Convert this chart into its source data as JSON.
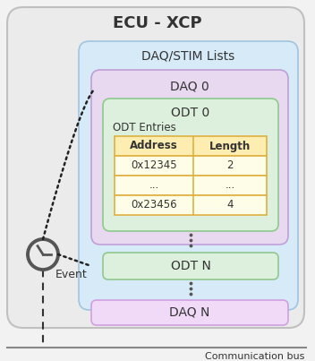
{
  "title": "ECU - XCP",
  "daq_stim_label": "DAQ/STIM Lists",
  "daq0_label": "DAQ 0",
  "odt0_label": "ODT 0",
  "odt_entries_label": "ODT Entries",
  "table_headers": [
    "Address",
    "Length"
  ],
  "table_rows": [
    [
      "0x12345",
      "2"
    ],
    [
      "...",
      "..."
    ],
    [
      "0x23456",
      "4"
    ]
  ],
  "odtn_label": "ODT N",
  "daqn_label": "DAQ N",
  "event_label": "Event",
  "bus_label": "Communication bus",
  "bg_color": "#f2f2f2",
  "ecu_bg": "#ebebeb",
  "daq_stim_bg": "#d6eaf8",
  "daq0_bg": "#e8d8f0",
  "odt0_bg": "#ddf0dd",
  "table_bg_header": "#fdedb0",
  "table_bg_row": "#fefee8",
  "odtn_bg": "#ddf0dd",
  "daqn_bg": "#f0daf8",
  "clock_color": "#555555",
  "text_color": "#333333",
  "ecu_edge": "#c0c0c0",
  "daq_stim_edge": "#a0c4e0",
  "daq0_edge": "#c0a0d8",
  "odt0_edge": "#90c890",
  "table_edge": "#e0b040",
  "odtn_edge": "#90c890",
  "daqn_edge": "#d0a0e0"
}
